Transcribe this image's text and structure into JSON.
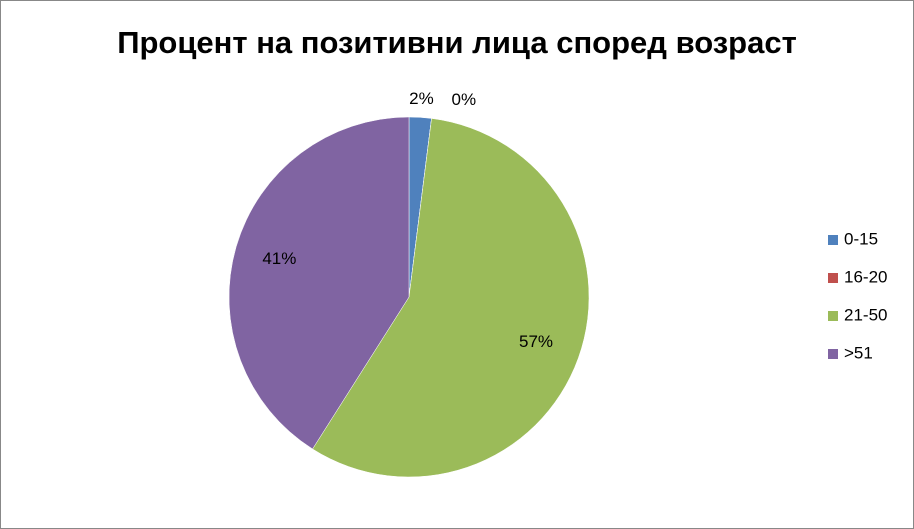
{
  "chart_data": {
    "type": "pie",
    "title": "Процент на позитивни лица според возраст",
    "categories": [
      "0-15",
      "16-20",
      "21-50",
      ">51"
    ],
    "values": [
      2,
      0,
      57,
      41
    ],
    "value_labels": [
      "2%",
      "0%",
      "57%",
      "41%"
    ],
    "colors": [
      "#4f81bd",
      "#c0504d",
      "#9bbb59",
      "#8064a2"
    ],
    "legend": "right"
  }
}
